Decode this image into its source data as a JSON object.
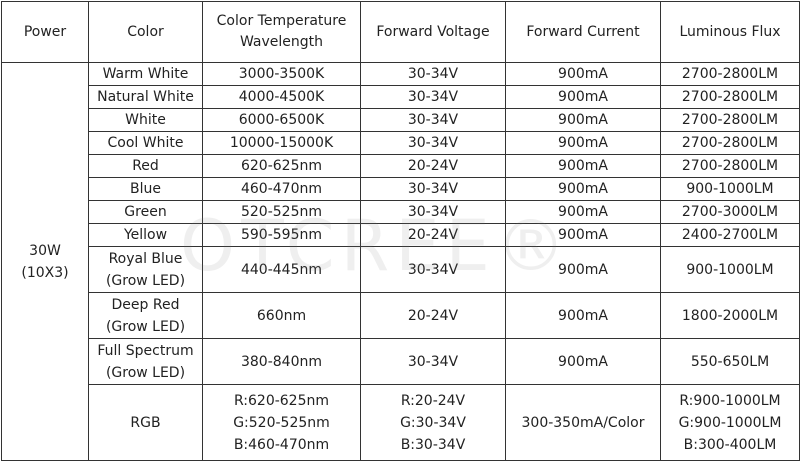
{
  "table": {
    "header": [
      [
        "Power"
      ],
      [
        "Color"
      ],
      [
        "Color Temperature",
        "Wavelength"
      ],
      [
        "Forward Voltage"
      ],
      [
        "Forward Current"
      ],
      [
        "Luminous Flux"
      ]
    ],
    "power": [
      "30W",
      "(10X3)"
    ],
    "rows": [
      [
        [
          "Warm White"
        ],
        [
          "3000-3500K"
        ],
        [
          "30-34V"
        ],
        [
          "900mA"
        ],
        [
          "2700-2800LM"
        ]
      ],
      [
        [
          "Natural White"
        ],
        [
          "4000-4500K"
        ],
        [
          "30-34V"
        ],
        [
          "900mA"
        ],
        [
          "2700-2800LM"
        ]
      ],
      [
        [
          "White"
        ],
        [
          "6000-6500K"
        ],
        [
          "30-34V"
        ],
        [
          "900mA"
        ],
        [
          "2700-2800LM"
        ]
      ],
      [
        [
          "Cool White"
        ],
        [
          "10000-15000K"
        ],
        [
          "30-34V"
        ],
        [
          "900mA"
        ],
        [
          "2700-2800LM"
        ]
      ],
      [
        [
          "Red"
        ],
        [
          "620-625nm"
        ],
        [
          "20-24V"
        ],
        [
          "900mA"
        ],
        [
          "2700-2800LM"
        ]
      ],
      [
        [
          "Blue"
        ],
        [
          "460-470nm"
        ],
        [
          "30-34V"
        ],
        [
          "900mA"
        ],
        [
          "900-1000LM"
        ]
      ],
      [
        [
          "Green"
        ],
        [
          "520-525nm"
        ],
        [
          "30-34V"
        ],
        [
          "900mA"
        ],
        [
          "2700-3000LM"
        ]
      ],
      [
        [
          "Yellow"
        ],
        [
          "590-595nm"
        ],
        [
          "20-24V"
        ],
        [
          "900mA"
        ],
        [
          "2400-2700LM"
        ]
      ],
      [
        [
          "Royal Blue",
          "(Grow LED)"
        ],
        [
          "440-445nm"
        ],
        [
          "30-34V"
        ],
        [
          "900mA"
        ],
        [
          "900-1000LM"
        ]
      ],
      [
        [
          "Deep Red",
          "(Grow LED)"
        ],
        [
          "660nm"
        ],
        [
          "20-24V"
        ],
        [
          "900mA"
        ],
        [
          "1800-2000LM"
        ]
      ],
      [
        [
          "Full Spectrum",
          "(Grow LED)"
        ],
        [
          "380-840nm"
        ],
        [
          "30-34V"
        ],
        [
          "900mA"
        ],
        [
          "550-650LM"
        ]
      ],
      [
        [
          "RGB"
        ],
        [
          "R:620-625nm",
          "G:520-525nm",
          "B:460-470nm"
        ],
        [
          "R:20-24V",
          "G:30-34V",
          "B:30-34V"
        ],
        [
          "300-350mA/Color"
        ],
        [
          "R:900-1000LM",
          "G:900-1000LM",
          "B:300-400LM"
        ]
      ]
    ]
  },
  "watermark": "OTCREE®"
}
